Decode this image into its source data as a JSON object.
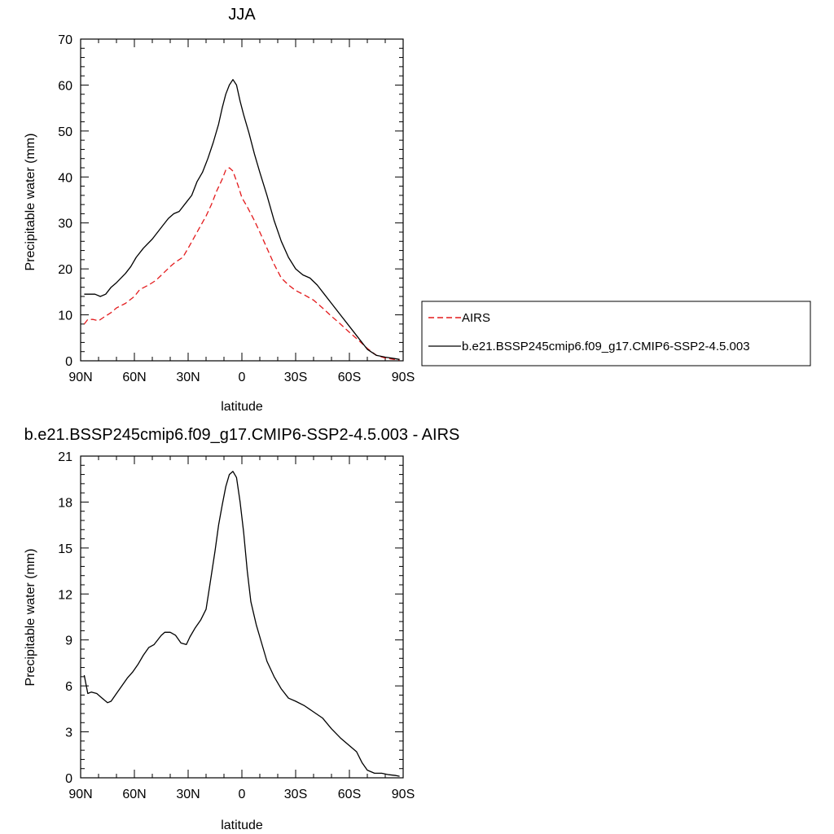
{
  "chart_data": [
    {
      "type": "line",
      "title": "JJA",
      "xlabel": "latitude",
      "ylabel": "Precipitable water (mm)",
      "xlim": [
        90,
        -90
      ],
      "ylim": [
        0,
        70
      ],
      "y_major_step": 10,
      "x_ticks": [
        {
          "value": 90,
          "label": "90N"
        },
        {
          "value": 60,
          "label": "60N"
        },
        {
          "value": 30,
          "label": "30N"
        },
        {
          "value": 0,
          "label": "0"
        },
        {
          "value": -30,
          "label": "30S"
        },
        {
          "value": -60,
          "label": "60S"
        },
        {
          "value": -90,
          "label": "90S"
        }
      ],
      "y_ticks": [
        0,
        10,
        20,
        30,
        40,
        50,
        60,
        70
      ],
      "grid": false,
      "legend_position": "right",
      "series": [
        {
          "name": "AIRS",
          "color": "#e31a1c",
          "style": "dashed",
          "points": [
            [
              88,
              8.0
            ],
            [
              86,
              9.0
            ],
            [
              83,
              9.0
            ],
            [
              80,
              8.7
            ],
            [
              77,
              9.5
            ],
            [
              73,
              10.5
            ],
            [
              70,
              11.5
            ],
            [
              65,
              12.5
            ],
            [
              60,
              14.0
            ],
            [
              57,
              15.5
            ],
            [
              52,
              16.5
            ],
            [
              48,
              17.5
            ],
            [
              44,
              19.0
            ],
            [
              40,
              20.5
            ],
            [
              37,
              21.5
            ],
            [
              33,
              22.5
            ],
            [
              30,
              24.5
            ],
            [
              25,
              28.0
            ],
            [
              20,
              31.5
            ],
            [
              17,
              34.0
            ],
            [
              14,
              37.0
            ],
            [
              11,
              39.5
            ],
            [
              9,
              41.5
            ],
            [
              7,
              42.0
            ],
            [
              5,
              41.3
            ],
            [
              2,
              38.0
            ],
            [
              0,
              35.5
            ],
            [
              -3,
              33.5
            ],
            [
              -7,
              30.5
            ],
            [
              -10,
              28.0
            ],
            [
              -14,
              24.5
            ],
            [
              -18,
              21.0
            ],
            [
              -22,
              18.0
            ],
            [
              -26,
              16.5
            ],
            [
              -30,
              15.3
            ],
            [
              -35,
              14.3
            ],
            [
              -40,
              13.2
            ],
            [
              -45,
              11.5
            ],
            [
              -50,
              9.7
            ],
            [
              -55,
              8.0
            ],
            [
              -60,
              6.2
            ],
            [
              -65,
              4.5
            ],
            [
              -70,
              2.7
            ],
            [
              -75,
              1.2
            ],
            [
              -80,
              0.6
            ],
            [
              -85,
              0.3
            ],
            [
              -88,
              0.2
            ]
          ]
        },
        {
          "name": "b.e21.BSSP245cmip6.f09_g17.CMIP6-SSP2-4.5.003",
          "color": "#000000",
          "style": "solid",
          "points": [
            [
              88,
              14.5
            ],
            [
              85,
              14.5
            ],
            [
              82,
              14.5
            ],
            [
              79,
              14.0
            ],
            [
              76,
              14.5
            ],
            [
              73,
              16.0
            ],
            [
              70,
              17.0
            ],
            [
              65,
              19.0
            ],
            [
              62,
              20.5
            ],
            [
              59,
              22.5
            ],
            [
              55,
              24.5
            ],
            [
              50,
              26.5
            ],
            [
              47,
              28.0
            ],
            [
              44,
              29.5
            ],
            [
              41,
              31.0
            ],
            [
              38,
              32.0
            ],
            [
              35,
              32.5
            ],
            [
              31,
              34.5
            ],
            [
              28,
              36.0
            ],
            [
              25,
              39.0
            ],
            [
              22,
              41.0
            ],
            [
              19,
              44.0
            ],
            [
              16,
              47.5
            ],
            [
              13,
              51.5
            ],
            [
              11,
              55.0
            ],
            [
              9,
              58.0
            ],
            [
              7,
              60.0
            ],
            [
              5,
              61.2
            ],
            [
              3,
              60.0
            ],
            [
              1,
              56.5
            ],
            [
              -1,
              53.5
            ],
            [
              -4,
              49.5
            ],
            [
              -7,
              45.0
            ],
            [
              -10,
              41.0
            ],
            [
              -14,
              36.0
            ],
            [
              -18,
              30.5
            ],
            [
              -22,
              26.0
            ],
            [
              -26,
              22.5
            ],
            [
              -30,
              20.0
            ],
            [
              -34,
              18.7
            ],
            [
              -38,
              18.0
            ],
            [
              -42,
              16.5
            ],
            [
              -46,
              14.5
            ],
            [
              -50,
              12.5
            ],
            [
              -55,
              10.0
            ],
            [
              -60,
              7.5
            ],
            [
              -65,
              5.0
            ],
            [
              -70,
              2.5
            ],
            [
              -75,
              1.2
            ],
            [
              -80,
              0.8
            ],
            [
              -85,
              0.5
            ],
            [
              -88,
              0.3
            ]
          ]
        }
      ]
    },
    {
      "type": "line",
      "title": "b.e21.BSSP245cmip6.f09_g17.CMIP6-SSP2-4.5.003 - AIRS",
      "xlabel": "latitude",
      "ylabel": "Precipitable water (mm)",
      "xlim": [
        90,
        -90
      ],
      "ylim": [
        0,
        21
      ],
      "y_major_step": 3,
      "x_ticks": [
        {
          "value": 90,
          "label": "90N"
        },
        {
          "value": 60,
          "label": "60N"
        },
        {
          "value": 30,
          "label": "30N"
        },
        {
          "value": 0,
          "label": "0"
        },
        {
          "value": -30,
          "label": "30S"
        },
        {
          "value": -60,
          "label": "60S"
        },
        {
          "value": -90,
          "label": "90S"
        }
      ],
      "y_ticks": [
        0,
        3,
        6,
        9,
        12,
        15,
        18,
        21
      ],
      "grid": false,
      "series": [
        {
          "name": "",
          "color": "#000000",
          "style": "solid",
          "points": [
            [
              88,
              6.7
            ],
            [
              86,
              5.5
            ],
            [
              84,
              5.6
            ],
            [
              81,
              5.5
            ],
            [
              78,
              5.2
            ],
            [
              75,
              4.9
            ],
            [
              73,
              5.0
            ],
            [
              70,
              5.5
            ],
            [
              67,
              6.0
            ],
            [
              64,
              6.5
            ],
            [
              61,
              6.9
            ],
            [
              58,
              7.4
            ],
            [
              55,
              8.0
            ],
            [
              52,
              8.5
            ],
            [
              49,
              8.7
            ],
            [
              45,
              9.3
            ],
            [
              43,
              9.5
            ],
            [
              40,
              9.5
            ],
            [
              37,
              9.3
            ],
            [
              34,
              8.8
            ],
            [
              31,
              8.7
            ],
            [
              29,
              9.2
            ],
            [
              26,
              9.8
            ],
            [
              23,
              10.3
            ],
            [
              20,
              11.0
            ],
            [
              18,
              12.5
            ],
            [
              15,
              14.8
            ],
            [
              13,
              16.5
            ],
            [
              11,
              17.8
            ],
            [
              9,
              19.0
            ],
            [
              7,
              19.8
            ],
            [
              5,
              20.0
            ],
            [
              3,
              19.6
            ],
            [
              1,
              18.0
            ],
            [
              -1,
              16.0
            ],
            [
              -3,
              13.5
            ],
            [
              -5,
              11.5
            ],
            [
              -8,
              10.0
            ],
            [
              -11,
              8.8
            ],
            [
              -14,
              7.6
            ],
            [
              -18,
              6.6
            ],
            [
              -22,
              5.8
            ],
            [
              -26,
              5.2
            ],
            [
              -30,
              5.0
            ],
            [
              -35,
              4.7
            ],
            [
              -40,
              4.3
            ],
            [
              -45,
              3.9
            ],
            [
              -50,
              3.2
            ],
            [
              -55,
              2.6
            ],
            [
              -60,
              2.1
            ],
            [
              -64,
              1.7
            ],
            [
              -67,
              1.0
            ],
            [
              -70,
              0.5
            ],
            [
              -74,
              0.3
            ],
            [
              -78,
              0.3
            ],
            [
              -82,
              0.2
            ],
            [
              -86,
              0.15
            ],
            [
              -88,
              0.1
            ]
          ]
        }
      ]
    }
  ]
}
